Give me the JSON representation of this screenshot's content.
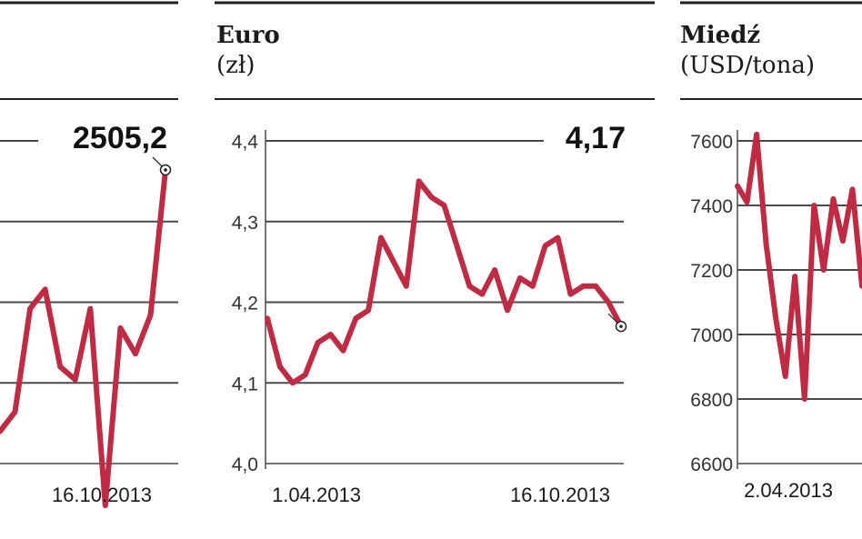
{
  "colors": {
    "line": "#c02a43",
    "grid": "#4a4a4a",
    "rule": "#222222",
    "text": "#1a1a1a"
  },
  "chart_data": [
    {
      "type": "line",
      "title": "",
      "last_value_label": "2505,2",
      "end_date_label": "16.10.2013",
      "yticks": [],
      "ylim": [
        2050,
        2550
      ],
      "x": [
        "16.07.2013",
        "24.07.2013",
        "01.08.2013",
        "09.08.2013",
        "19.08.2013",
        "27.08.2013",
        "04.09.2013",
        "12.09.2013",
        "20.09.2013",
        "30.09.2013",
        "08.10.2013",
        "16.10.2013"
      ],
      "values": [
        2100,
        2130,
        2290,
        2320,
        2200,
        2180,
        2290,
        1985,
        2260,
        2220,
        2280,
        2505
      ]
    },
    {
      "type": "line",
      "title": "Euro",
      "unit": "(zł)",
      "last_value_label": "4,17",
      "start_date_label": "1.04.2013",
      "end_date_label": "16.10.2013",
      "yticks": [
        "4,4",
        "4,3",
        "4,2",
        "4,1",
        "4,0"
      ],
      "ylim": [
        4.0,
        4.4
      ],
      "x": [
        "01.04.2013",
        "08.04.2013",
        "15.04.2013",
        "22.04.2013",
        "29.04.2013",
        "06.05.2013",
        "13.05.2013",
        "20.05.2013",
        "27.05.2013",
        "03.06.2013",
        "10.06.2013",
        "17.06.2013",
        "24.06.2013",
        "01.07.2013",
        "08.07.2013",
        "15.07.2013",
        "22.07.2013",
        "29.07.2013",
        "05.08.2013",
        "12.08.2013",
        "19.08.2013",
        "26.08.2013",
        "02.09.2013",
        "09.09.2013",
        "16.09.2013",
        "23.09.2013",
        "30.09.2013",
        "07.10.2013",
        "16.10.2013"
      ],
      "values": [
        4.18,
        4.12,
        4.1,
        4.11,
        4.15,
        4.16,
        4.14,
        4.18,
        4.19,
        4.28,
        4.25,
        4.22,
        4.35,
        4.33,
        4.32,
        4.27,
        4.22,
        4.21,
        4.24,
        4.19,
        4.23,
        4.22,
        4.27,
        4.28,
        4.21,
        4.22,
        4.22,
        4.2,
        4.17
      ]
    },
    {
      "type": "line",
      "title": "Miedź",
      "unit": "(USD/tona)",
      "start_date_label": "2.04.2013",
      "yticks": [
        "7600",
        "7400",
        "7200",
        "7000",
        "6800",
        "6600"
      ],
      "ylim": [
        6600,
        7600
      ],
      "x": [
        "02.04.2013",
        "09.04.2013",
        "16.04.2013",
        "23.04.2013",
        "30.04.2013",
        "07.05.2013",
        "14.05.2013",
        "21.05.2013",
        "28.05.2013",
        "04.06.2013",
        "11.06.2013",
        "18.06.2013",
        "25.06.2013",
        "02.07.2013"
      ],
      "values": [
        7460,
        7410,
        7620,
        7280,
        7050,
        6870,
        7180,
        6800,
        7400,
        7200,
        7420,
        7290,
        7450,
        7150
      ]
    }
  ]
}
